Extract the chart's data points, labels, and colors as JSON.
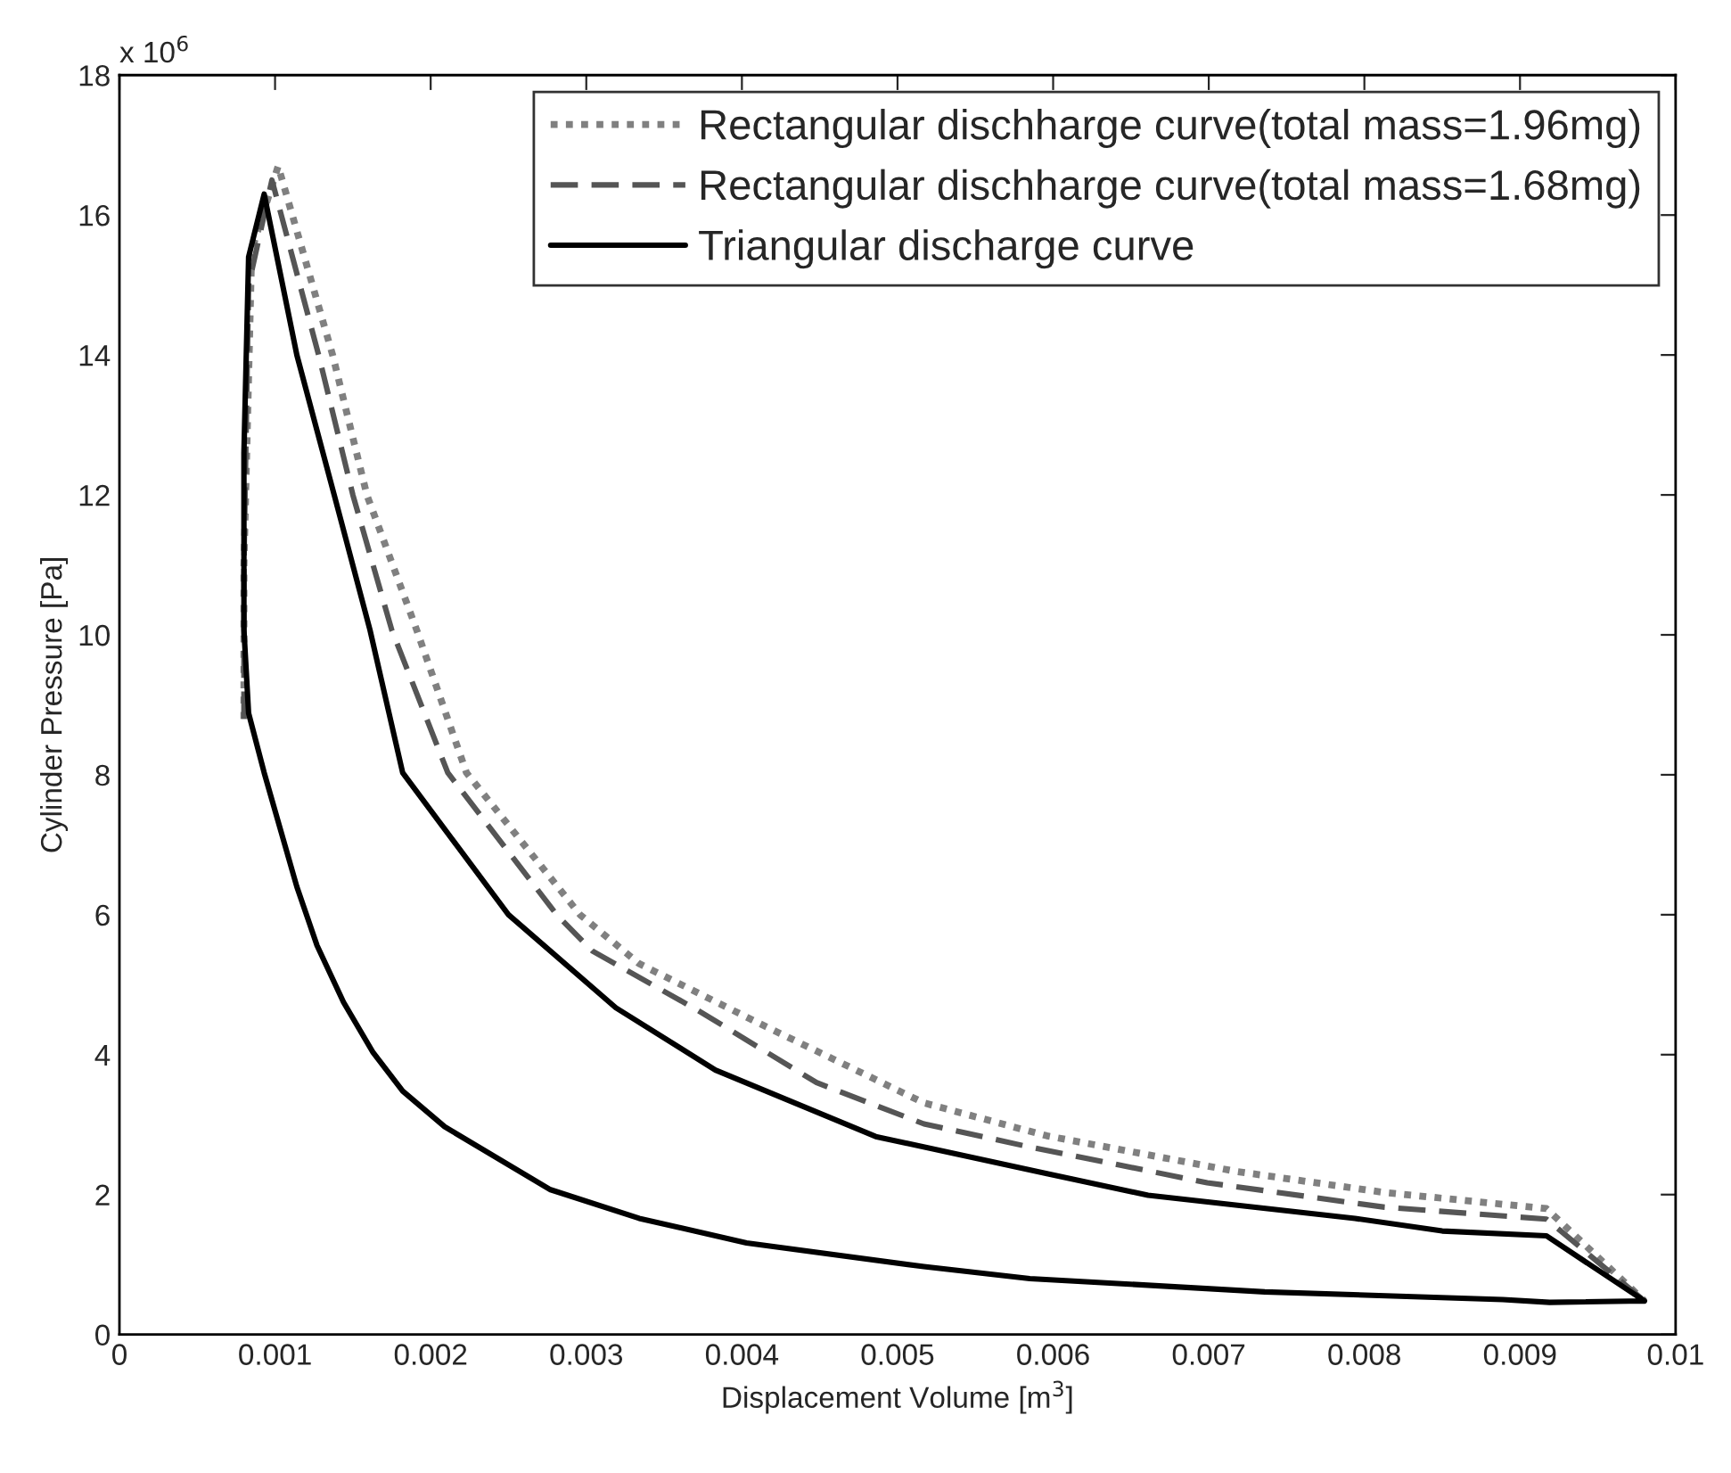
{
  "chart_data": {
    "type": "line",
    "xlabel": "Displacement Volume [m$^{3}$]",
    "ylabel": "Cylinder Pressure [Pa]",
    "annotations": [
      "x 10$^{6}$"
    ],
    "xlim": [
      0,
      0.01
    ],
    "xticks": [
      0,
      0.001,
      0.002,
      0.003,
      0.004,
      0.005,
      0.006,
      0.007,
      0.008,
      0.009,
      0.01
    ],
    "ylim": [
      0,
      18
    ],
    "yticks": [
      0,
      2,
      4,
      6,
      8,
      10,
      12,
      14,
      16,
      18
    ],
    "grid": false,
    "legend": "top right",
    "marker": "none",
    "series": [
      {
        "name": "Rectangular dischharge curve(total mass=1.96mg)",
        "color": "#808080",
        "line_style": "dotted",
        "x": [
          0.0008,
          0.0008,
          0.00085,
          0.00102,
          0.00137,
          0.00159,
          0.00191,
          0.00223,
          0.00296,
          0.00334,
          0.0041,
          0.00517,
          0.00596,
          0.00718,
          0.00813,
          0.00917,
          0.0098
        ],
        "values": [
          8.8,
          11.0,
          15.5,
          16.7,
          14.0,
          12.0,
          10.07,
          8.03,
          6.0,
          5.3,
          4.46,
          3.31,
          2.84,
          2.33,
          2.03,
          1.8,
          0.48
        ]
      },
      {
        "name": "Rectangular dischharge curve(total mass=1.68mg)",
        "color": "#555555",
        "line_style": "dashed",
        "x": [
          0.0008,
          0.0008,
          0.00083,
          0.00098,
          0.00128,
          0.0015,
          0.00175,
          0.00211,
          0.00281,
          0.00304,
          0.00372,
          0.00448,
          0.00517,
          0.00585,
          0.00699,
          0.00813,
          0.00917,
          0.0098
        ],
        "values": [
          8.8,
          11.0,
          15.0,
          16.5,
          14.0,
          12.0,
          10.07,
          8.03,
          6.0,
          5.48,
          4.63,
          3.6,
          3.01,
          2.68,
          2.17,
          1.82,
          1.65,
          0.48
        ]
      },
      {
        "name": "Triangular discharge curve",
        "color": "#000000",
        "line_style": "solid",
        "x": [
          0.0008,
          0.00083,
          0.00093,
          0.00114,
          0.00138,
          0.00161,
          0.00182,
          0.0025,
          0.00319,
          0.00383,
          0.00486,
          0.00596,
          0.00661,
          0.00794,
          0.0085,
          0.00917,
          0.0098,
          null,
          0.0008,
          0.0008,
          0.00083,
          0.00093,
          0.00114,
          0.00127,
          0.00144,
          0.00163,
          0.00182,
          0.00209,
          0.00277,
          0.00334,
          0.00403,
          0.00517,
          0.00585,
          0.00736,
          0.00889,
          0.00919,
          0.0098
        ],
        "values": [
          12.6,
          15.4,
          16.3,
          14.0,
          12.0,
          10.07,
          8.03,
          6.0,
          4.67,
          3.78,
          2.83,
          2.3,
          1.99,
          1.66,
          1.48,
          1.41,
          0.48,
          null,
          12.6,
          10.07,
          8.88,
          8.03,
          6.4,
          5.56,
          4.75,
          4.03,
          3.48,
          2.97,
          2.07,
          1.66,
          1.31,
          0.97,
          0.8,
          0.61,
          0.5,
          0.46,
          0.48
        ]
      }
    ]
  }
}
